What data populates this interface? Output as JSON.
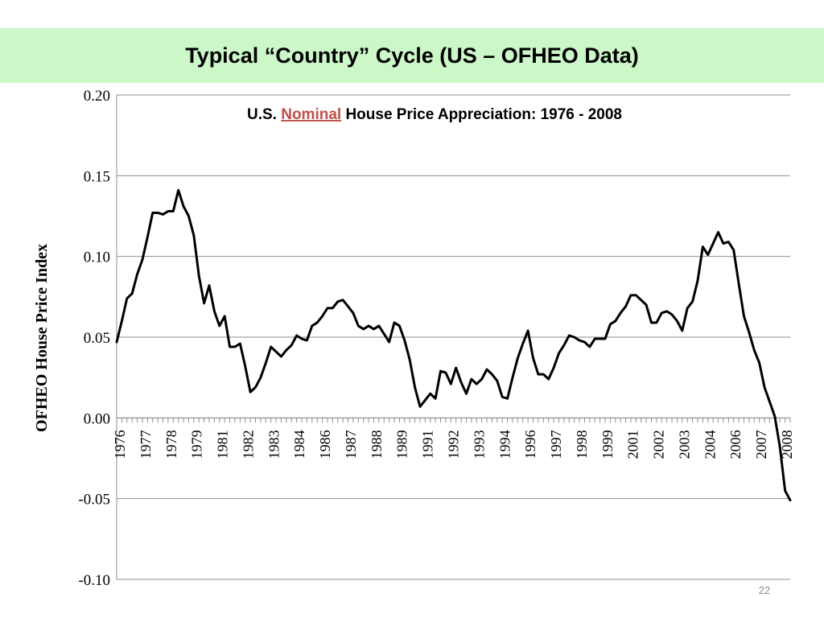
{
  "slide": {
    "title": "Typical “Country” Cycle (US – OFHEO Data)",
    "page_number": "22",
    "colors": {
      "title_band": "#ccf7c8",
      "highlight": "#c0504d",
      "line": "#000000"
    }
  },
  "chart_data": {
    "type": "line",
    "title_parts": [
      "U.S. ",
      "Nominal",
      " House Price Appreciation:  1976 - 2008"
    ],
    "title_emphasis": "Nominal",
    "xlabel": "",
    "ylabel": "OFHEO House Price Index",
    "ylim": [
      -0.1,
      0.2
    ],
    "y_ticks": [
      "0.20",
      "0.15",
      "0.10",
      "0.05",
      "0.00",
      "-0.05",
      "-0.10"
    ],
    "y_tick_values": [
      0.2,
      0.15,
      0.1,
      0.05,
      0.0,
      -0.05,
      -0.1
    ],
    "x_tick_labels": [
      "1976",
      "1977",
      "1978",
      "1979",
      "1981",
      "1982",
      "1983",
      "1984",
      "1986",
      "1987",
      "1988",
      "1989",
      "1991",
      "1992",
      "1993",
      "1994",
      "1996",
      "1997",
      "1998",
      "1999",
      "2001",
      "2002",
      "2003",
      "2004",
      "2006",
      "2007",
      "2008"
    ],
    "grid": true,
    "series": [
      {
        "values": [
          0.047,
          0.06,
          0.074,
          0.077,
          0.089,
          0.098,
          0.112,
          0.127,
          0.127,
          0.126,
          0.128,
          0.128,
          0.141,
          0.131,
          0.125,
          0.113,
          0.088,
          0.071,
          0.082,
          0.066,
          0.057,
          0.063,
          0.044,
          0.044,
          0.046,
          0.032,
          0.016,
          0.019,
          0.025,
          0.034,
          0.044,
          0.041,
          0.038,
          0.042,
          0.045,
          0.051,
          0.049,
          0.048,
          0.057,
          0.059,
          0.063,
          0.068,
          0.068,
          0.072,
          0.073,
          0.069,
          0.065,
          0.057,
          0.055,
          0.057,
          0.055,
          0.057,
          0.052,
          0.047,
          0.059,
          0.057,
          0.048,
          0.036,
          0.019,
          0.007,
          0.011,
          0.015,
          0.012,
          0.029,
          0.028,
          0.021,
          0.031,
          0.022,
          0.015,
          0.024,
          0.021,
          0.024,
          0.03,
          0.027,
          0.023,
          0.013,
          0.012,
          0.025,
          0.037,
          0.046,
          0.054,
          0.037,
          0.027,
          0.027,
          0.024,
          0.031,
          0.04,
          0.045,
          0.051,
          0.05,
          0.048,
          0.047,
          0.044,
          0.049,
          0.049,
          0.049,
          0.058,
          0.06,
          0.065,
          0.069,
          0.076,
          0.076,
          0.073,
          0.07,
          0.059,
          0.059,
          0.065,
          0.066,
          0.064,
          0.06,
          0.054,
          0.068,
          0.072,
          0.085,
          0.106,
          0.101,
          0.108,
          0.115,
          0.108,
          0.109,
          0.104,
          0.083,
          0.063,
          0.053,
          0.042,
          0.034,
          0.019,
          0.01,
          0.001,
          -0.018,
          -0.045,
          -0.051
        ]
      }
    ]
  }
}
